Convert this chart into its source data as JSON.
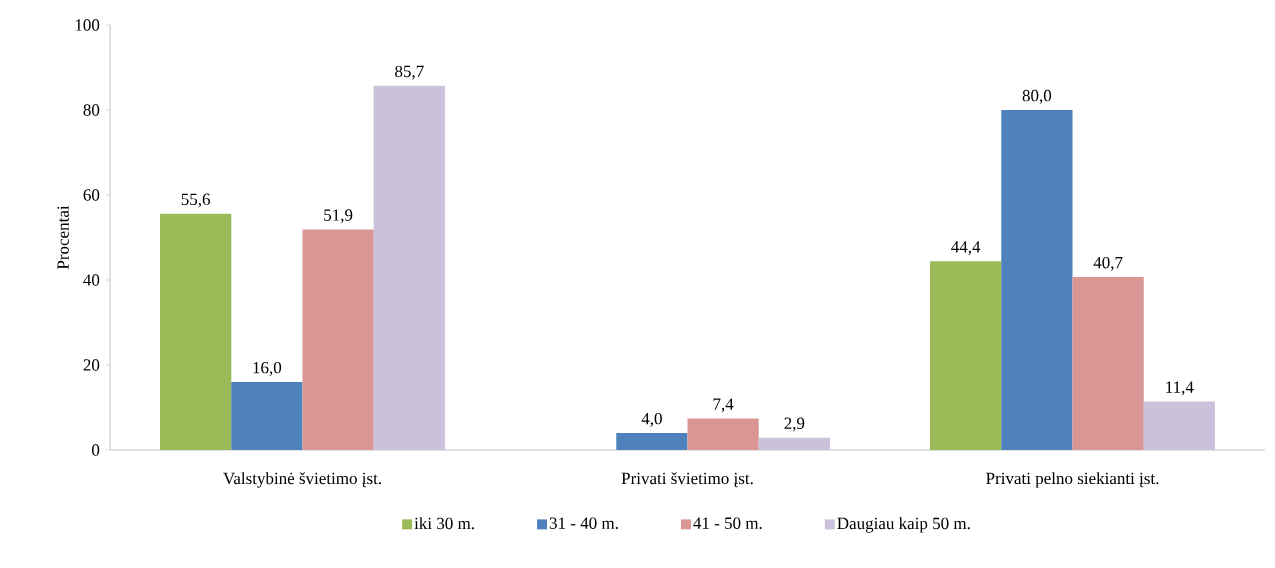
{
  "chart_data": {
    "type": "bar",
    "ylabel": "Procentai",
    "categories": [
      "Valstybinė švietimo įst.",
      "Privati švietimo įst.",
      "Privati pelno siekianti įst."
    ],
    "series": [
      {
        "name": "iki 30 m.",
        "color": "#9bbb59",
        "values": [
          55.6,
          null,
          44.4
        ],
        "value_labels": [
          "55,6",
          null,
          "44,4"
        ]
      },
      {
        "name": "31 - 40 m.",
        "color": "#4f81bd",
        "values": [
          16.0,
          4.0,
          80.0
        ],
        "value_labels": [
          "16,0",
          "4,0",
          "80,0"
        ]
      },
      {
        "name": "41 - 50 m.",
        "color": "#d99694",
        "values": [
          51.9,
          7.4,
          40.7
        ],
        "value_labels": [
          "51,9",
          "7,4",
          "40,7"
        ]
      },
      {
        "name": "Daugiau kaip 50 m.",
        "color": "#ccc1da",
        "values": [
          85.7,
          2.9,
          11.4
        ],
        "value_labels": [
          "85,7",
          "2,9",
          "11,4"
        ]
      }
    ],
    "ylim": [
      0,
      100
    ],
    "yticks": [
      0,
      20,
      40,
      60,
      80,
      100
    ],
    "legend": "bottom"
  }
}
